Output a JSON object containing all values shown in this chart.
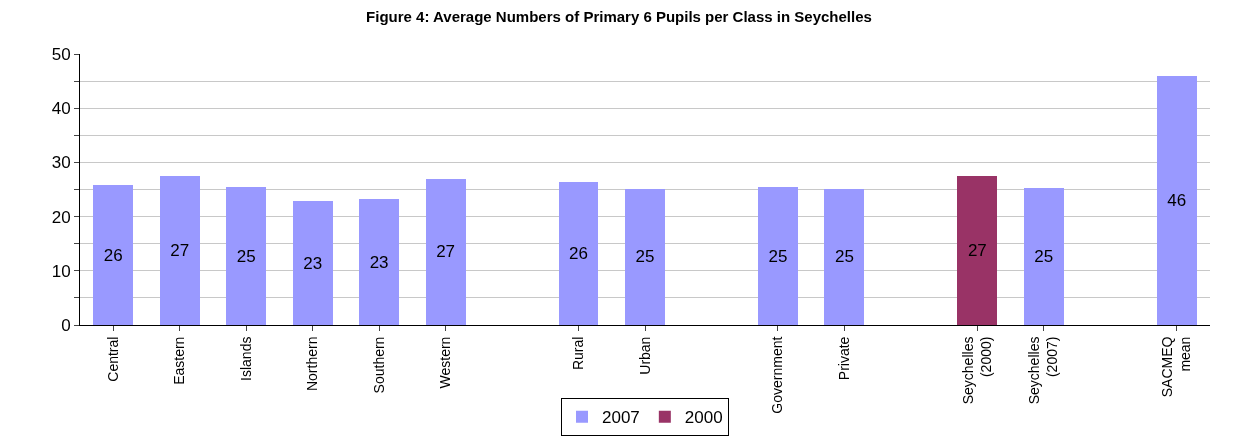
{
  "chart_data": {
    "type": "bar",
    "title": "Figure 4: Average Numbers of Primary 6 Pupils per Class in Seychelles",
    "categories": [
      "Central",
      "Eastern",
      "Islands",
      "Northern",
      "Southern",
      "Western",
      null,
      "Rural",
      "Urban",
      null,
      "Government",
      "Private",
      null,
      "Seychelles (2000)",
      "Seychelles (2007)",
      null,
      "SACMEQ mean"
    ],
    "series": [
      {
        "name": "2000",
        "color": "#993366",
        "values": [
          null,
          null,
          null,
          null,
          null,
          null,
          null,
          null,
          null,
          null,
          null,
          null,
          null,
          27.4,
          null,
          null,
          null
        ],
        "value_labels": [
          null,
          null,
          null,
          null,
          null,
          null,
          null,
          null,
          null,
          null,
          null,
          null,
          null,
          "27",
          null,
          null,
          null
        ]
      },
      {
        "name": "2007",
        "color": "#9999ff",
        "values": [
          25.8,
          27.4,
          25.4,
          22.8,
          23.2,
          27.0,
          null,
          26.4,
          25.1,
          null,
          25.4,
          25.1,
          null,
          null,
          25.3,
          null,
          46.0
        ],
        "value_labels": [
          "26",
          "27",
          "25",
          "23",
          "23",
          "27",
          null,
          "26",
          "25",
          null,
          "25",
          "25",
          null,
          null,
          "25",
          null,
          "46"
        ]
      }
    ],
    "stacked": true,
    "ylim": [
      0,
      50
    ],
    "yticks": [
      0,
      {
        "value": 5,
        "label": null
      },
      10,
      {
        "value": 15,
        "label": null
      },
      20,
      {
        "value": 25,
        "label": null
      },
      30,
      {
        "value": 35,
        "label": null
      },
      40,
      {
        "value": 45,
        "label": null
      },
      50
    ],
    "grid": "y",
    "legend": "bottom"
  }
}
